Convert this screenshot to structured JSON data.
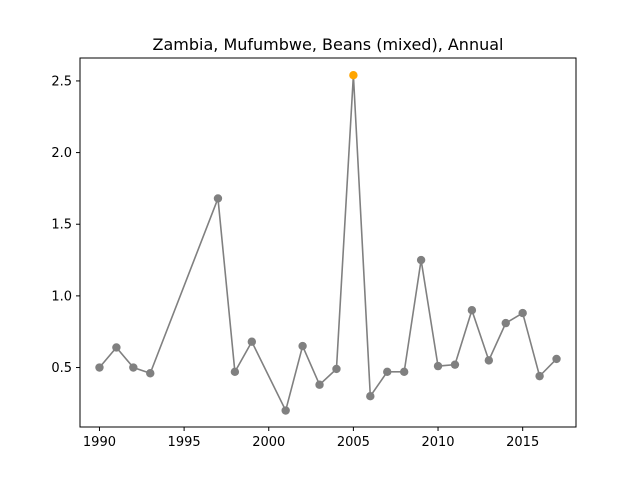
{
  "chart_data": {
    "type": "line",
    "title": "Zambia, Mufumbwe, Beans (mixed), Annual",
    "xlabel": "",
    "ylabel": "",
    "xlim": [
      1988.85,
      2018.15
    ],
    "ylim": [
      0.085,
      2.66
    ],
    "x_ticks": [
      1990,
      1995,
      2000,
      2005,
      2010,
      2015
    ],
    "y_ticks": [
      0.5,
      1.0,
      1.5,
      2.0,
      2.5
    ],
    "x_tick_labels": [
      "1990",
      "1995",
      "2000",
      "2005",
      "2010",
      "2015"
    ],
    "y_tick_labels": [
      "0.5",
      "1.0",
      "1.5",
      "2.0",
      "2.5"
    ],
    "grid": false,
    "line_color": "#808080",
    "highlight_color": "#FFA500",
    "series": [
      {
        "x": [
          1990,
          1991,
          1992,
          1993,
          1997,
          1998,
          1999,
          2001,
          2002,
          2003,
          2004,
          2005,
          2006,
          2007,
          2008,
          2009,
          2010,
          2011,
          2012,
          2013,
          2014,
          2015,
          2016,
          2017
        ],
        "y": [
          0.5,
          0.64,
          0.5,
          0.46,
          1.68,
          0.47,
          0.68,
          0.2,
          0.65,
          0.38,
          0.49,
          2.54,
          0.3,
          0.47,
          0.47,
          1.25,
          0.51,
          0.52,
          0.9,
          0.55,
          0.81,
          0.88,
          0.44,
          0.56
        ],
        "highlight_x": [
          2005
        ]
      }
    ]
  }
}
